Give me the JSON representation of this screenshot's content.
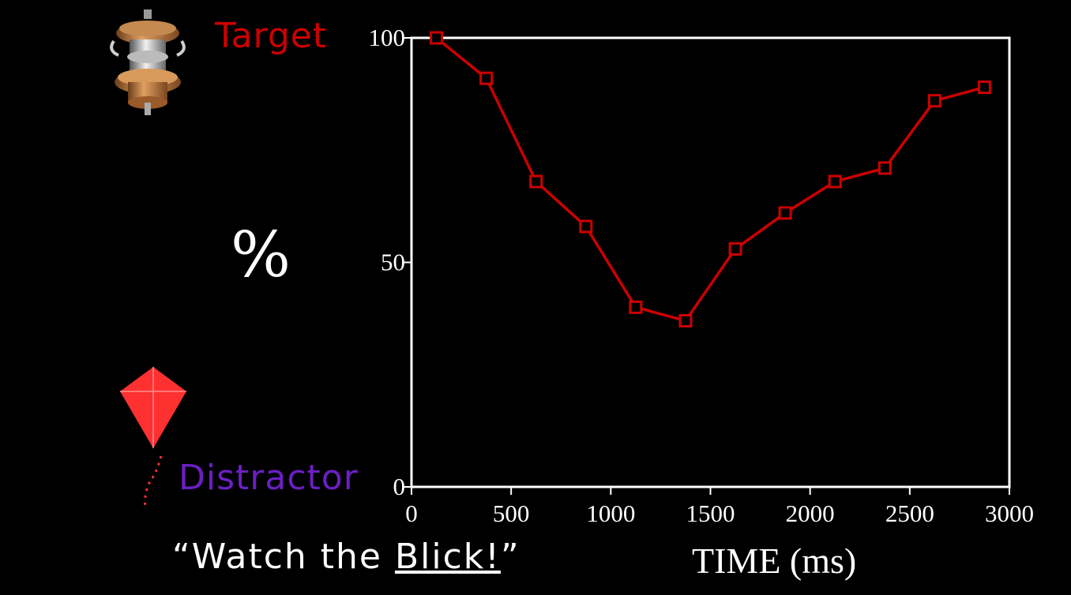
{
  "legend": {
    "target_label": "Target",
    "distractor_label": "Distractor",
    "target_icon": "spool-toy-icon",
    "distractor_icon": "kite-icon"
  },
  "caption": {
    "quote_open": "“Watch the ",
    "word": "Blick!",
    "quote_close": "”"
  },
  "colors": {
    "background": "#000000",
    "series": "#cc0000",
    "target_label": "#cc0000",
    "distractor_label": "#6b1fc2",
    "axis": "#ffffff"
  },
  "chart_data": {
    "type": "line",
    "xlabel": "TIME (ms)",
    "ylabel": "%",
    "xlim": [
      0,
      3000
    ],
    "ylim": [
      0,
      100
    ],
    "xticks": [
      0,
      500,
      1000,
      1500,
      2000,
      2500,
      3000
    ],
    "yticks": [
      0,
      50,
      100
    ],
    "grid": false,
    "series": [
      {
        "x": [
          125,
          375,
          625,
          875,
          1125,
          1375,
          1625,
          1875,
          2125,
          2375,
          2625,
          2875
        ],
        "y": [
          100,
          91,
          68,
          58,
          40,
          37,
          53,
          61,
          68,
          71,
          86,
          89
        ]
      }
    ]
  }
}
